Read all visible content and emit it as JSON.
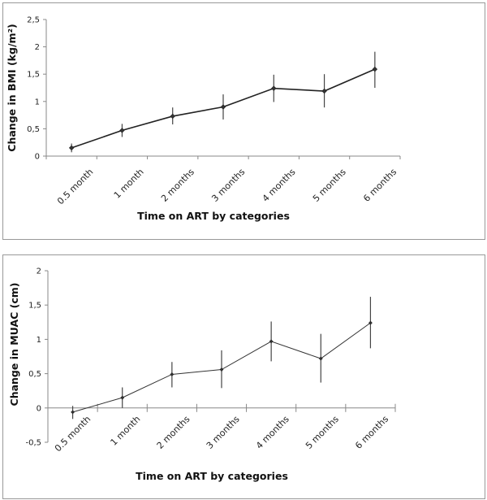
{
  "chart_data": [
    {
      "type": "line",
      "title": "",
      "xlabel": "Time on ART by categories",
      "ylabel": "Change in BMI (kg/m²)",
      "categories": [
        "0.5 month",
        "1 month",
        "2 months",
        "3 months",
        "4 months",
        "5 months",
        "6 months"
      ],
      "values": [
        0.15,
        0.47,
        0.73,
        0.9,
        1.24,
        1.19,
        1.59
      ],
      "error_low": [
        0.07,
        0.35,
        0.58,
        0.67,
        0.99,
        0.89,
        1.25
      ],
      "error_high": [
        0.23,
        0.59,
        0.89,
        1.13,
        1.49,
        1.5,
        1.91
      ],
      "ylim": [
        0,
        2.5
      ],
      "yticks": [
        0,
        0.5,
        1,
        1.5,
        2,
        2.5
      ],
      "ytick_labels": [
        "0",
        "0,5",
        "1",
        "1,5",
        "2",
        "2,5"
      ],
      "grid": false,
      "line_color": "#222222"
    },
    {
      "type": "line",
      "title": "",
      "xlabel": "Time on ART by categories",
      "ylabel": "Change in MUAC (cm)",
      "categories": [
        "0.5 month",
        "1  month",
        "2 months",
        "3 months",
        "4 months",
        "5 months",
        "6 months"
      ],
      "values": [
        -0.06,
        0.15,
        0.49,
        0.56,
        0.97,
        0.72,
        1.24
      ],
      "error_low": [
        -0.16,
        0.0,
        0.3,
        0.29,
        0.68,
        0.37,
        0.87
      ],
      "error_high": [
        0.03,
        0.3,
        0.67,
        0.84,
        1.26,
        1.08,
        1.62
      ],
      "ylim": [
        -0.5,
        2
      ],
      "yticks": [
        -0.5,
        0,
        0.5,
        1,
        1.5,
        2
      ],
      "ytick_labels": [
        "-0,5",
        "0",
        "0,5",
        "1",
        "1,5",
        "2"
      ],
      "grid": false,
      "line_color": "#333333"
    }
  ]
}
